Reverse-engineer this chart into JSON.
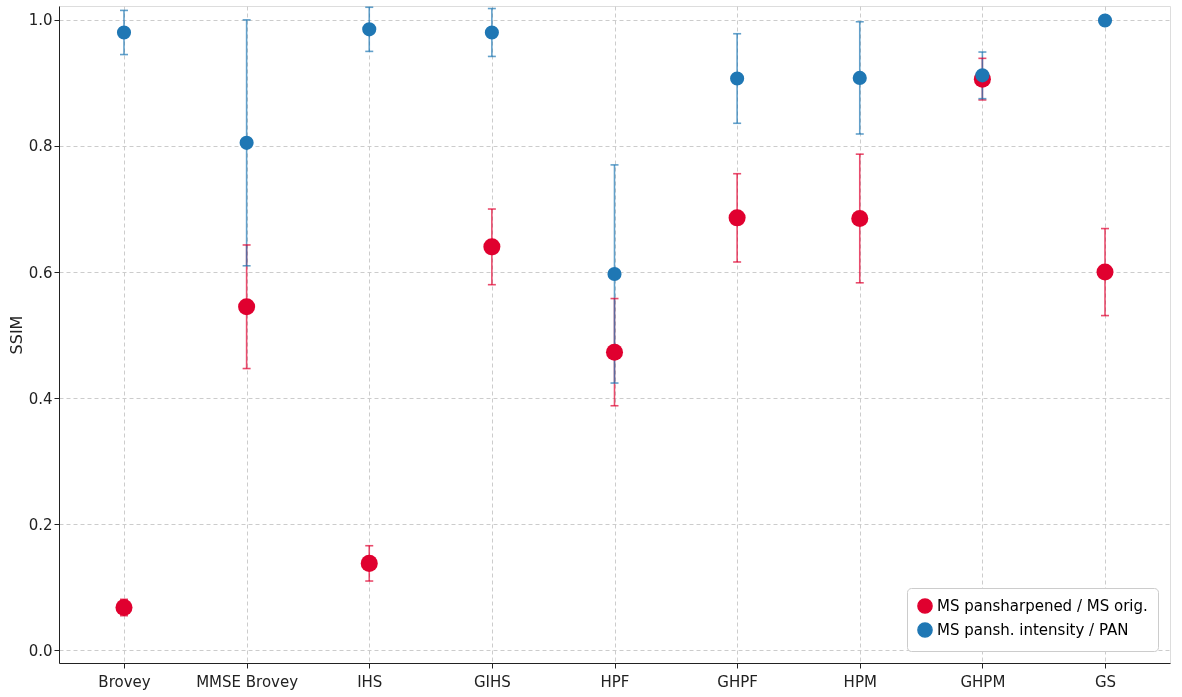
{
  "chart_data": {
    "type": "scatter",
    "ylabel": "SSIM",
    "categories": [
      "Brovey",
      "MMSE Brovey",
      "IHS",
      "GIHS",
      "HPF",
      "GHPF",
      "HPM",
      "GHPM",
      "GS"
    ],
    "series": [
      {
        "name": "MS pansharpened / MS orig.",
        "color": "#e0002f",
        "values": [
          0.068,
          0.545,
          0.138,
          0.64,
          0.473,
          0.686,
          0.685,
          0.906,
          0.6
        ],
        "errors": [
          0.013,
          0.098,
          0.028,
          0.06,
          0.085,
          0.07,
          0.102,
          0.033,
          0.069
        ]
      },
      {
        "name": "MS pansh. intensity / PAN",
        "color": "#1f77b4",
        "values": [
          0.98,
          0.805,
          0.985,
          0.98,
          0.597,
          0.907,
          0.908,
          0.912,
          0.999
        ],
        "errors": [
          0.035,
          0.195,
          0.035,
          0.038,
          0.173,
          0.071,
          0.089,
          0.037,
          null
        ]
      }
    ],
    "ylim": [
      -0.02,
      1.022
    ],
    "yticks": [
      {
        "value": 0,
        "label": "0.0"
      },
      {
        "value": 0.2,
        "label": "0.2"
      },
      {
        "value": 0.4,
        "label": "0.4"
      },
      {
        "value": 0.6,
        "label": "0.6"
      },
      {
        "value": 0.8,
        "label": "0.8"
      },
      {
        "value": 1,
        "label": "1.0"
      }
    ],
    "grid": true,
    "legend": "bottom right",
    "marker": "circle"
  }
}
